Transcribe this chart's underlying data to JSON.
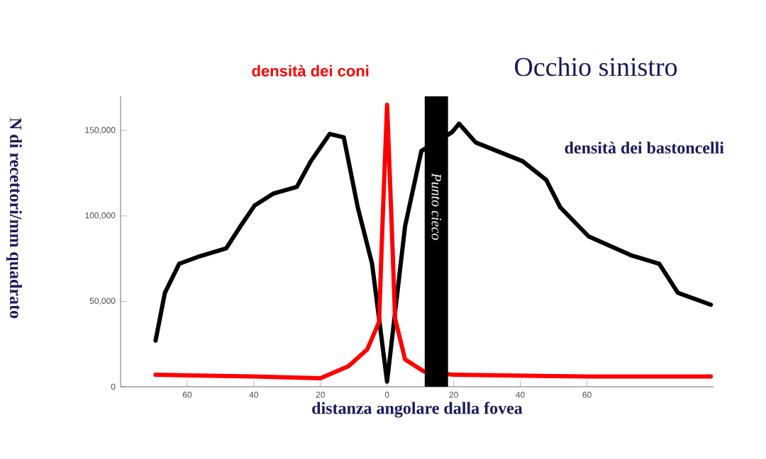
{
  "chart_data": {
    "type": "line",
    "title": "Occhio sinistro",
    "xlabel": "distanza angolare dalla fovea",
    "ylabel": "N di recettori/mm quadrato",
    "xlim": [
      -80,
      98
    ],
    "ylim": [
      0,
      170000
    ],
    "xticks": [
      {
        "value": -60,
        "label": "60"
      },
      {
        "value": -40,
        "label": "40"
      },
      {
        "value": -20,
        "label": "20"
      },
      0,
      {
        "value": 20,
        "label": "20"
      },
      {
        "value": 40,
        "label": "40"
      },
      {
        "value": 60,
        "label": "60"
      }
    ],
    "yticks": [
      0,
      {
        "value": 50000,
        "label": "50,000"
      },
      {
        "value": 100000,
        "label": "100,000"
      },
      {
        "value": 150000,
        "label": "150,000"
      }
    ],
    "grid": false,
    "marker": "none",
    "line_style": "solid",
    "bands": [
      {
        "axis": "x",
        "from": 11.3,
        "to": 18.3,
        "label": "Punto cieco",
        "color": "#000000"
      }
    ],
    "series": [
      {
        "name": "densità dei bastoncelli",
        "color": "#000000",
        "x": [
          -69.5,
          -66.7,
          -62.4,
          -56.8,
          -48.3,
          -44,
          -39.8,
          -34.2,
          -27.1,
          -22.9,
          -17.2,
          -13,
          -8.8,
          -4.5,
          0,
          5.4,
          10.3,
          19.5,
          21.6,
          26.6,
          40.7,
          47.8,
          52,
          60.5,
          73.2,
          81.7,
          87.3,
          97.2
        ],
        "values": [
          27000,
          55000,
          72000,
          76000,
          81000,
          94000,
          106000,
          113000,
          117000,
          132000,
          148000,
          146000,
          105000,
          72000,
          3000,
          94000,
          138000,
          149000,
          154000,
          143000,
          132000,
          121000,
          105000,
          88000,
          77000,
          72000,
          55000,
          48000
        ]
      },
      {
        "name": "densità dei coni",
        "color": "#ff0000",
        "x": [
          -69.5,
          -40,
          -20,
          -11.6,
          -5.9,
          -2.4,
          -1.4,
          0,
          1.4,
          2.4,
          5.4,
          11,
          20,
          60,
          97.2
        ],
        "values": [
          7000,
          6000,
          5000,
          12000,
          22000,
          38000,
          94000,
          165000,
          94000,
          40000,
          16000,
          9000,
          7000,
          6000,
          6000
        ]
      }
    ]
  }
}
